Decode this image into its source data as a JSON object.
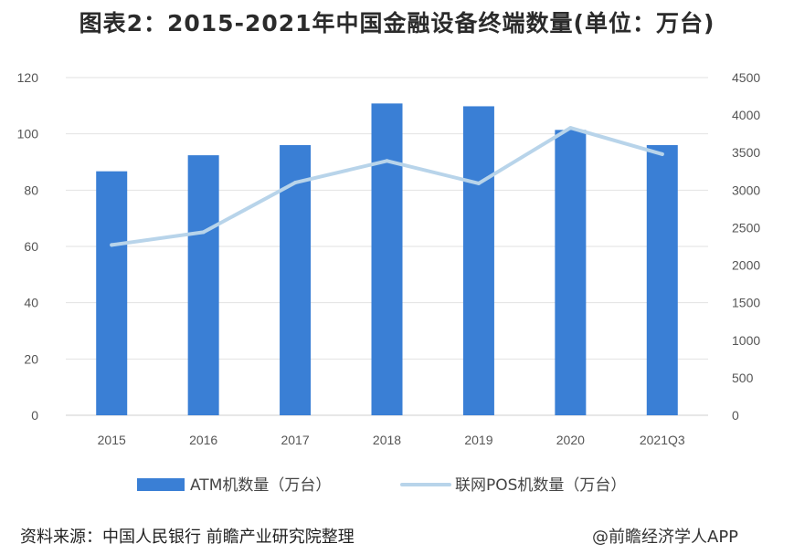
{
  "chart_data": {
    "type": "bar",
    "title": "图表2：2015-2021年中国金融设备终端数量(单位：万台)",
    "categories": [
      "2015",
      "2016",
      "2017",
      "2018",
      "2019",
      "2020",
      "2021Q3"
    ],
    "series": [
      {
        "name": "ATM机数量（万台）",
        "type": "bar",
        "axis": "left",
        "color": "#3a7fd5",
        "values": [
          86.7,
          92.4,
          96.0,
          110.8,
          109.8,
          101.4,
          96.0
        ]
      },
      {
        "name": "联网POS机数量（万台）",
        "type": "line",
        "axis": "right",
        "color": "#b8d4ea",
        "values": [
          2270,
          2440,
          3100,
          3390,
          3090,
          3830,
          3480
        ]
      }
    ],
    "y_left": {
      "min": 0,
      "max": 120,
      "ticks": [
        0,
        20,
        40,
        60,
        80,
        100,
        120
      ]
    },
    "y_right": {
      "min": 0,
      "max": 4500,
      "ticks": [
        0,
        500,
        1000,
        1500,
        2000,
        2500,
        3000,
        3500,
        4000,
        4500
      ]
    },
    "grid": true,
    "legend_position": "bottom"
  },
  "footer": {
    "source": "资料来源：中国人民银行 前瞻产业研究院整理",
    "watermark": "@前瞻经济学人APP"
  }
}
